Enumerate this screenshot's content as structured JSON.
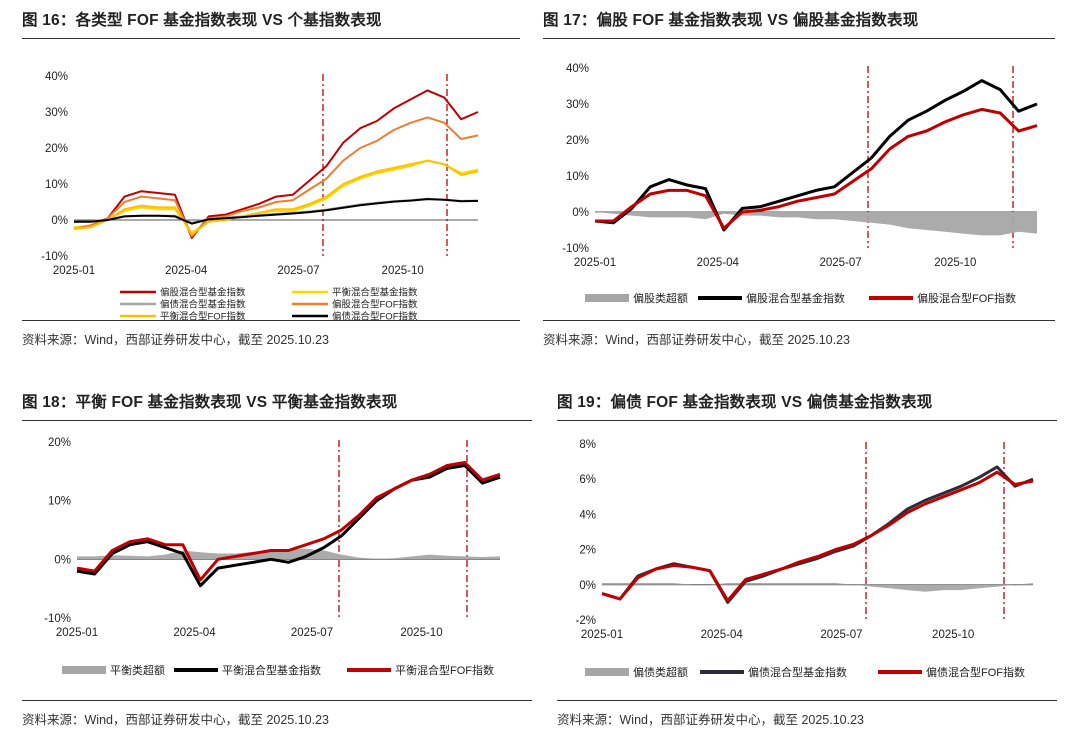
{
  "source_note": "资料来源：Wind，西部证券研发中心，截至 2025.10.23",
  "colors": {
    "dark_red": "#c00000",
    "orange": "#ed7d31",
    "yellow": "#ffd700",
    "gray": "#a6a6a6",
    "black": "#000000",
    "navy": "#2d2d3a"
  },
  "chart_data": [
    {
      "id": "fig16",
      "type": "line",
      "title": "图 16：各类型 FOF 基金指数表现 VS 个基指数表现",
      "ylim": [
        -10,
        40
      ],
      "yticks": [
        "40%",
        "30%",
        "20%",
        "10%",
        "0%",
        "-10%"
      ],
      "xticks": [
        "2025-01",
        "2025-04",
        "2025-07",
        "2025-10"
      ],
      "vlines": [
        "2025-07",
        "2025-10"
      ],
      "series": [
        {
          "name": "偏股混合型基金指数",
          "style": "line",
          "color": "#c00000",
          "values": [
            -2.5,
            -1.5,
            0.5,
            6.5,
            8.0,
            7.5,
            7.0,
            -5.0,
            1.0,
            1.5,
            3.0,
            4.5,
            6.5,
            7.0,
            11.0,
            15.0,
            21.5,
            25.5,
            27.5,
            31.0,
            33.5,
            36.0,
            34.0,
            28.0,
            30.0
          ]
        },
        {
          "name": "平衡混合型基金指数",
          "style": "line",
          "color": "#ffd700",
          "values": [
            -2.0,
            -1.5,
            0.0,
            2.5,
            3.5,
            3.0,
            3.0,
            -3.5,
            -0.5,
            0.0,
            1.0,
            2.0,
            2.5,
            2.5,
            4.0,
            6.0,
            9.5,
            11.5,
            13.0,
            14.0,
            15.0,
            16.5,
            15.5,
            13.0,
            14.0
          ]
        },
        {
          "name": "偏债混合型基金指数",
          "style": "line",
          "color": "#a6a6a6",
          "values": [
            -0.5,
            -0.4,
            0.2,
            1.0,
            1.2,
            1.2,
            1.2,
            -0.8,
            0.3,
            0.6,
            1.0,
            1.4,
            1.7,
            2.0,
            2.4,
            2.9,
            3.6,
            4.3,
            4.8,
            5.2,
            5.5,
            5.9,
            5.6,
            5.3,
            5.4
          ]
        },
        {
          "name": "偏股混合型FOF指数",
          "style": "line",
          "color": "#ed7d31",
          "values": [
            -2.5,
            -1.5,
            0.5,
            5.0,
            6.5,
            6.0,
            5.5,
            -4.5,
            0.5,
            1.0,
            2.5,
            3.5,
            5.0,
            5.5,
            8.5,
            11.5,
            16.5,
            20.0,
            22.0,
            25.0,
            27.0,
            28.5,
            27.0,
            22.5,
            23.5
          ]
        },
        {
          "name": "平衡混合型FOF指数",
          "style": "line",
          "color": "#ffc000",
          "values": [
            -2.5,
            -2.0,
            0.0,
            3.0,
            4.0,
            3.5,
            3.5,
            -4.0,
            -0.5,
            0.0,
            1.0,
            2.0,
            3.0,
            3.0,
            4.5,
            6.5,
            10.0,
            12.0,
            13.5,
            14.5,
            15.5,
            16.5,
            15.5,
            12.5,
            13.5
          ]
        },
        {
          "name": "偏债混合型FOF指数",
          "style": "line",
          "color": "#000000",
          "values": [
            -0.5,
            -0.5,
            0.0,
            1.0,
            1.2,
            1.2,
            1.0,
            -1.0,
            0.2,
            0.5,
            0.8,
            1.2,
            1.5,
            1.8,
            2.2,
            2.7,
            3.4,
            4.1,
            4.6,
            5.1,
            5.4,
            5.8,
            5.6,
            5.2,
            5.3
          ]
        }
      ]
    },
    {
      "id": "fig17",
      "type": "line",
      "title": "图 17：偏股 FOF 基金指数表现 VS 偏股基金指数表现",
      "ylim": [
        -10,
        40
      ],
      "yticks": [
        "40%",
        "30%",
        "20%",
        "10%",
        "0%",
        "-10%"
      ],
      "xticks": [
        "2025-01",
        "2025-04",
        "2025-07",
        "2025-10"
      ],
      "vlines": [
        "2025-07",
        "2025-10"
      ],
      "series": [
        {
          "name": "偏股类超额",
          "style": "area",
          "color": "#a6a6a6",
          "values": [
            0.0,
            -0.5,
            -1.0,
            -1.5,
            -1.5,
            -1.5,
            -2.0,
            -0.5,
            -1.0,
            -1.0,
            -1.5,
            -1.5,
            -2.0,
            -2.0,
            -2.5,
            -3.0,
            -3.5,
            -4.5,
            -5.0,
            -5.5,
            -6.0,
            -6.5,
            -6.5,
            -5.5,
            -6.0
          ]
        },
        {
          "name": "偏股混合型基金指数",
          "style": "line",
          "color": "#000000",
          "values": [
            -2.5,
            -3.0,
            1.0,
            7.0,
            9.0,
            7.5,
            6.5,
            -5.0,
            1.0,
            1.5,
            3.0,
            4.5,
            6.0,
            7.0,
            11.0,
            15.0,
            21.0,
            25.5,
            28.0,
            31.0,
            33.5,
            36.5,
            34.0,
            28.0,
            30.0
          ]
        },
        {
          "name": "偏股混合型FOF指数",
          "style": "line",
          "color": "#c00000",
          "values": [
            -2.5,
            -2.5,
            1.5,
            5.0,
            6.0,
            6.0,
            4.5,
            -4.5,
            0.0,
            0.5,
            1.5,
            3.0,
            4.0,
            5.0,
            8.5,
            12.0,
            17.5,
            21.0,
            22.5,
            25.0,
            27.0,
            28.5,
            27.5,
            22.5,
            24.0
          ]
        }
      ]
    },
    {
      "id": "fig18",
      "type": "line",
      "title": "图 18：平衡 FOF 基金指数表现 VS 平衡基金指数表现",
      "ylim": [
        -10,
        20
      ],
      "yticks": [
        "20%",
        "10%",
        "0%",
        "-10%"
      ],
      "xticks": [
        "2025-01",
        "2025-04",
        "2025-07",
        "2025-10"
      ],
      "vlines": [
        "2025-07",
        "2025-10"
      ],
      "series": [
        {
          "name": "平衡类超额",
          "style": "area",
          "color": "#a6a6a6",
          "values": [
            0.5,
            0.5,
            0.7,
            0.6,
            0.5,
            0.8,
            1.5,
            1.2,
            1.0,
            1.0,
            1.3,
            1.6,
            1.7,
            1.8,
            1.5,
            0.8,
            0.3,
            0.1,
            0.2,
            0.5,
            0.8,
            0.6,
            0.5,
            0.4,
            0.5
          ]
        },
        {
          "name": "平衡混合型基金指数",
          "style": "line",
          "color": "#000000",
          "values": [
            -2.0,
            -2.5,
            1.0,
            2.5,
            3.0,
            2.0,
            1.0,
            -4.5,
            -1.5,
            -1.0,
            -0.5,
            0.0,
            -0.5,
            0.5,
            2.0,
            4.0,
            7.0,
            10.0,
            12.0,
            13.5,
            14.0,
            15.5,
            16.0,
            13.0,
            14.0
          ]
        },
        {
          "name": "平衡混合型FOF指数",
          "style": "line",
          "color": "#c00000",
          "values": [
            -1.5,
            -2.0,
            1.5,
            3.0,
            3.5,
            2.5,
            2.5,
            -3.5,
            0.0,
            0.5,
            1.0,
            1.5,
            1.5,
            2.5,
            3.5,
            5.0,
            7.5,
            10.5,
            12.0,
            13.5,
            14.5,
            16.0,
            16.5,
            13.5,
            14.5
          ]
        }
      ]
    },
    {
      "id": "fig19",
      "type": "line",
      "title": "图 19：偏债 FOF 基金指数表现 VS 偏债基金指数表现",
      "ylim": [
        -2,
        8
      ],
      "yticks": [
        "8%",
        "6%",
        "4%",
        "2%",
        "0%",
        "-2%"
      ],
      "xticks": [
        "2025-01",
        "2025-04",
        "2025-07",
        "2025-10"
      ],
      "vlines": [
        "2025-07",
        "2025-10"
      ],
      "series": [
        {
          "name": "偏债类超额",
          "style": "area",
          "color": "#a6a6a6",
          "values": [
            0.1,
            0.1,
            0.1,
            0.1,
            0.1,
            0.0,
            0.0,
            0.1,
            0.1,
            0.1,
            0.1,
            0.1,
            0.1,
            0.1,
            0.0,
            -0.1,
            -0.2,
            -0.3,
            -0.4,
            -0.3,
            -0.3,
            -0.2,
            -0.1,
            0.0,
            0.1
          ]
        },
        {
          "name": "偏债混合型基金指数",
          "style": "line",
          "color": "#2d2d3a",
          "values": [
            -0.5,
            -0.8,
            0.5,
            0.9,
            1.2,
            1.0,
            0.8,
            -1.0,
            0.2,
            0.5,
            0.9,
            1.2,
            1.5,
            1.9,
            2.2,
            2.8,
            3.5,
            4.3,
            4.8,
            5.2,
            5.6,
            6.1,
            6.7,
            5.6,
            6.0
          ]
        },
        {
          "name": "偏债混合型FOF指数",
          "style": "line",
          "color": "#c00000",
          "values": [
            -0.5,
            -0.8,
            0.4,
            0.9,
            1.1,
            1.0,
            0.8,
            -0.9,
            0.3,
            0.6,
            0.9,
            1.3,
            1.6,
            2.0,
            2.3,
            2.8,
            3.4,
            4.1,
            4.6,
            5.0,
            5.4,
            5.8,
            6.4,
            5.7,
            5.9
          ]
        }
      ]
    }
  ]
}
